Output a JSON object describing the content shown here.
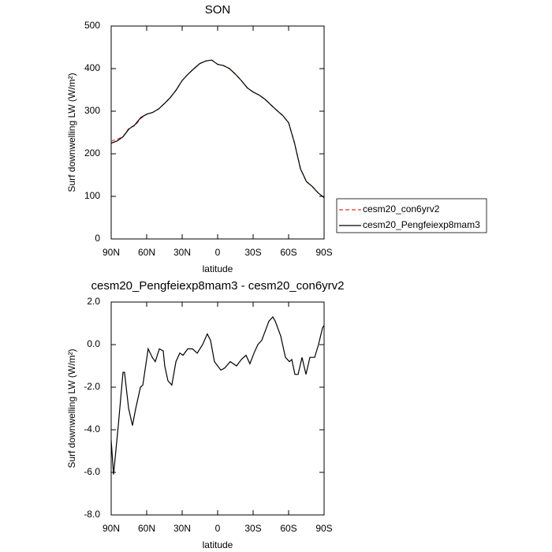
{
  "chart_data": [
    {
      "type": "line",
      "title": "SON",
      "xlabel": "latitude",
      "ylabel": "Surf downwelling LW (W/m²)",
      "x": [
        90,
        85,
        80,
        75,
        70,
        65,
        60,
        55,
        50,
        45,
        40,
        35,
        30,
        25,
        20,
        15,
        10,
        5,
        0,
        -5,
        -10,
        -15,
        -20,
        -25,
        -30,
        -35,
        -40,
        -45,
        -50,
        -55,
        -60,
        -65,
        -70,
        -75,
        -80,
        -85,
        -90
      ],
      "series": [
        {
          "name": "cesm20_con6yrv2",
          "color": "#e03030",
          "dash": true,
          "values": [
            230,
            234,
            240,
            260,
            266,
            283,
            293,
            297,
            305,
            318,
            332,
            350,
            372,
            387,
            400,
            412,
            418,
            420,
            410,
            407,
            400,
            387,
            372,
            355,
            345,
            338,
            328,
            315,
            302,
            290,
            273,
            225,
            165,
            135,
            123,
            108,
            97
          ]
        },
        {
          "name": "cesm20_Pengfeiexp8mam3",
          "color": "#000000",
          "dash": false,
          "values": [
            225,
            230,
            240,
            258,
            268,
            285,
            293,
            297,
            305,
            318,
            332,
            350,
            372,
            387,
            400,
            412,
            418,
            420,
            410,
            407,
            400,
            387,
            372,
            355,
            345,
            338,
            328,
            315,
            302,
            290,
            273,
            225,
            165,
            135,
            123,
            108,
            97
          ]
        }
      ],
      "xlim": [
        90,
        -90
      ],
      "xticks": [
        {
          "value": 90,
          "label": "90N"
        },
        {
          "value": 60,
          "label": "60N"
        },
        {
          "value": 30,
          "label": "30N"
        },
        0,
        {
          "value": -30,
          "label": "30S"
        },
        {
          "value": -60,
          "label": "60S"
        },
        {
          "value": -90,
          "label": "90S"
        }
      ],
      "ylim": [
        0,
        500
      ],
      "yticks": [
        0,
        100,
        200,
        300,
        400,
        500
      ],
      "legend": "right"
    },
    {
      "type": "line",
      "title": "cesm20_Pengfeiexp8mam3 - cesm20_con6yrv2",
      "xlabel": "latitude",
      "ylabel": "Surf downwelling LW (W/m²)",
      "x": [
        90,
        88,
        84,
        80,
        78.7,
        75.3,
        72,
        69.3,
        65.3,
        63.3,
        58.7,
        55.3,
        52.7,
        49.3,
        46,
        44.7,
        42,
        38.7,
        35.3,
        32,
        29.3,
        25.3,
        21.3,
        17.3,
        12.7,
        8.7,
        6,
        2.7,
        -2.7,
        -6,
        -10.7,
        -16,
        -20,
        -24,
        -27.3,
        -30.7,
        -34,
        -37.3,
        -40.7,
        -43.3,
        -46.7,
        -48.7,
        -53.3,
        -57.3,
        -60.7,
        -62.7,
        -65.3,
        -68,
        -71.3,
        -74.7,
        -78,
        -82,
        -85.3,
        -88.7,
        -90
      ],
      "series": [
        {
          "name": "cesm20_Pengfeiexp8mam3 - cesm20_con6yrv2",
          "color": "#000000",
          "dash": false,
          "values": [
            -4.5,
            -6.1,
            -3.8,
            -1.3,
            -1.3,
            -3.0,
            -3.8,
            -3.0,
            -2.0,
            -1.9,
            -0.2,
            -0.6,
            -0.8,
            -0.2,
            -0.3,
            -1.0,
            -1.7,
            -1.9,
            -0.8,
            -0.4,
            -0.5,
            -0.2,
            -0.2,
            -0.4,
            0.0,
            0.5,
            0.2,
            -0.8,
            -1.2,
            -1.1,
            -0.8,
            -1.0,
            -0.7,
            -0.5,
            -0.9,
            -0.4,
            0.0,
            0.2,
            0.7,
            1.1,
            1.3,
            1.1,
            0.4,
            -0.6,
            -0.8,
            -0.7,
            -1.4,
            -1.4,
            -0.6,
            -1.4,
            -0.6,
            -0.6,
            0.0,
            0.8,
            0.9
          ]
        }
      ],
      "xlim": [
        90,
        -90
      ],
      "xticks": [
        {
          "value": 90,
          "label": "90N"
        },
        {
          "value": 60,
          "label": "60N"
        },
        {
          "value": 30,
          "label": "30N"
        },
        0,
        {
          "value": -30,
          "label": "30S"
        },
        {
          "value": -60,
          "label": "60S"
        },
        {
          "value": -90,
          "label": "90S"
        }
      ],
      "ylim": [
        -8,
        2
      ],
      "yticks": [
        {
          "value": -8,
          "label": "-8.0"
        },
        {
          "value": -6,
          "label": "-6.0"
        },
        {
          "value": -4,
          "label": "-4.0"
        },
        {
          "value": -2,
          "label": "-2.0"
        },
        {
          "value": 0,
          "label": "0.0"
        },
        {
          "value": 2,
          "label": "2.0"
        }
      ]
    }
  ]
}
